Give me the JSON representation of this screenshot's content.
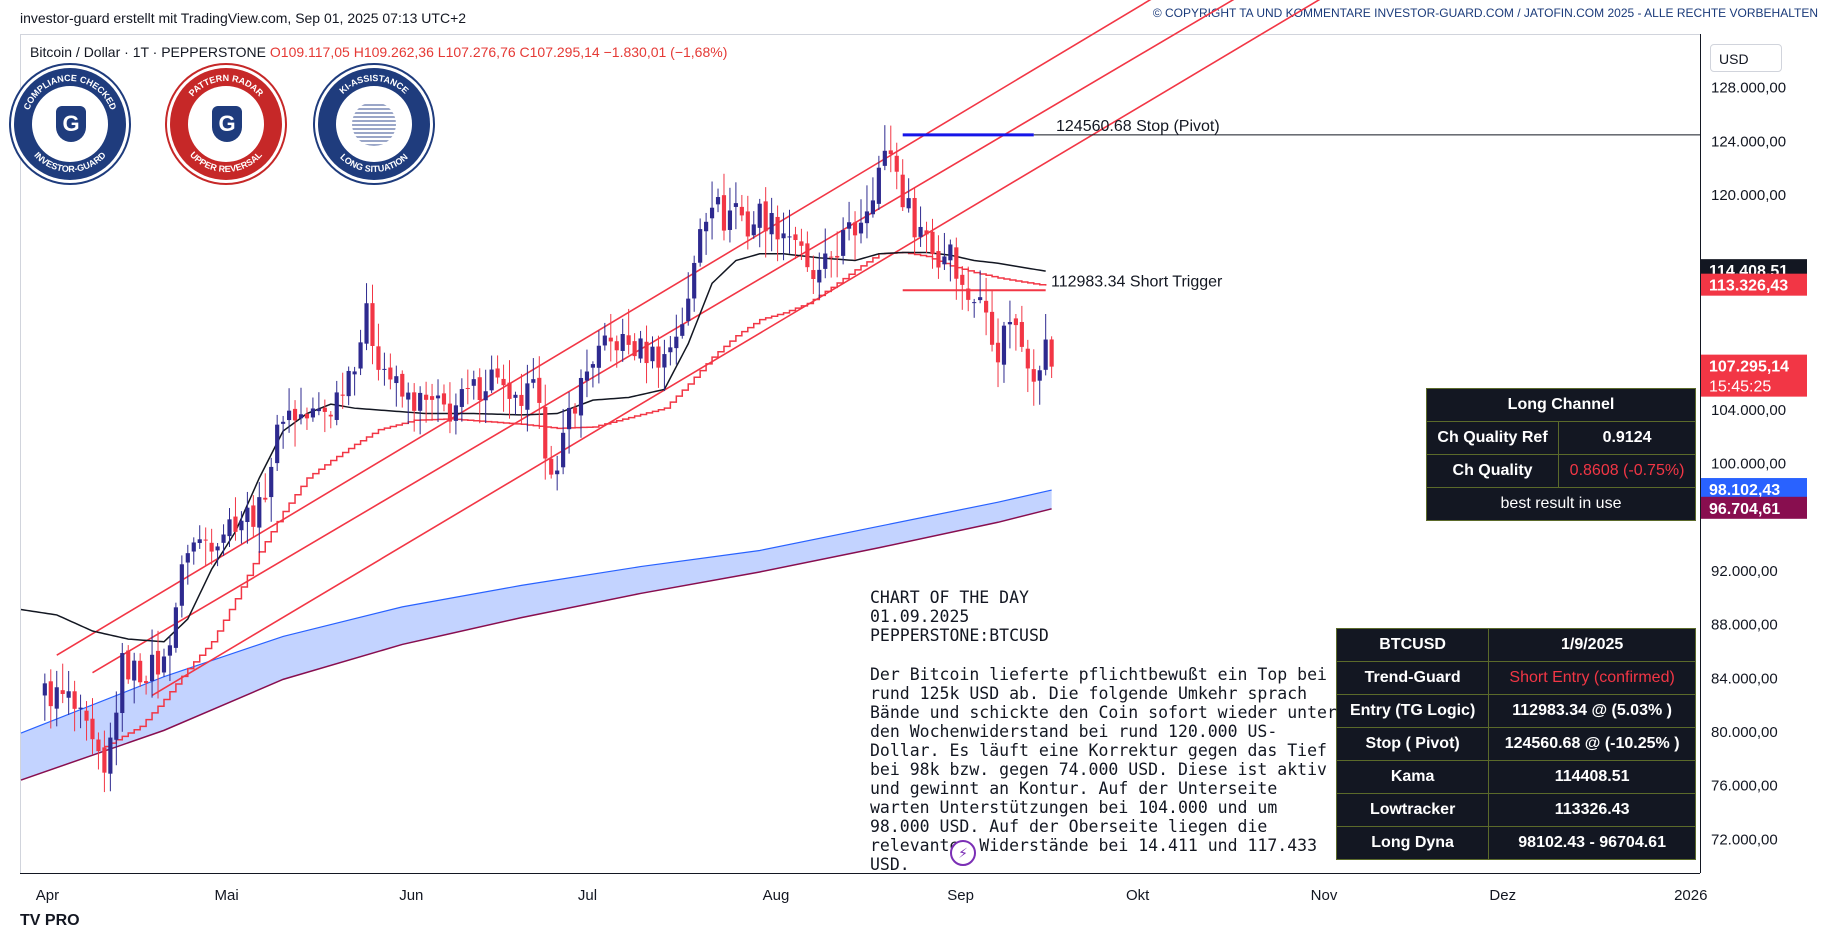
{
  "header": {
    "created_by": "investor-guard erstellt mit TradingView.com, Sep 01, 2025 07:13 UTC+2",
    "copyright": "© COPYRIGHT TA UND KOMMENTARE INVESTOR-GUARD.COM / JATOFIN.COM 2025 - ALLE RECHTE VORBEHALTEN"
  },
  "legend": {
    "symbol": "Bitcoin / Dollar · 1T · PEPPERSTONE",
    "open": "O109.117,05",
    "high": "H109.262,36",
    "low": "L107.276,76",
    "close": "C107.295,14",
    "change": "−1.830,01 (−1,68%)"
  },
  "currency": "USD",
  "badges": [
    {
      "top_text": "COMPLIANCE CHECKED",
      "bottom_text": "INVESTOR-GUARD",
      "ring_color": "#1f3c7d",
      "icon": "shield-g-icon"
    },
    {
      "top_text": "PATTERN RADAR",
      "bottom_text": "UPPER REVERSAL",
      "ring_color": "#c62828",
      "icon": "shield-g-icon"
    },
    {
      "top_text": "KI-ASSISTANCE",
      "bottom_text": "LONG SITUATION",
      "ring_color": "#1f3c7d",
      "icon": "ai-globe-icon"
    }
  ],
  "annotations": {
    "stop_pivot": "124560.68  Stop (Pivot)",
    "short_trigger": "112983.34  Short Trigger"
  },
  "price_badges": [
    {
      "label": "114.408,51",
      "bg": "#131722",
      "value": 114408.51
    },
    {
      "label": "113.326,43",
      "bg": "#f23645",
      "value": 113326.43
    },
    {
      "label": "107.295,14",
      "sub": "15:45:25",
      "bg": "#f23645",
      "value": 107295.14
    },
    {
      "label": "98.102,43",
      "bg": "#2962ff",
      "value": 98102.43
    },
    {
      "label": "96.704,61",
      "bg": "#880e4f",
      "value": 96704.61
    }
  ],
  "long_channel": {
    "title": "Long Channel",
    "rows": [
      {
        "label": "Ch Quality Ref",
        "value": "0.9124"
      },
      {
        "label": "Ch Quality",
        "value": "0.8608 (-0.75%)"
      }
    ],
    "footer": "best result in use"
  },
  "summary_table": {
    "header": [
      "BTCUSD",
      "1/9/2025"
    ],
    "rows": [
      {
        "label": "Trend-Guard",
        "value": "Short Entry (confirmed)"
      },
      {
        "label": "Entry (TG Logic)",
        "value": "112983.34 @ (5.03% )"
      },
      {
        "label": "Stop ( Pivot)",
        "value": "124560.68 @ (-10.25% )"
      },
      {
        "label": "Kama",
        "value": "114408.51"
      },
      {
        "label": "Lowtracker",
        "value": "113326.43"
      },
      {
        "label": "Long Dyna",
        "value": "98102.43 - 96704.61"
      }
    ]
  },
  "commentary": {
    "line1": "CHART OF THE DAY",
    "line2": "01.09.2025",
    "line3": "PEPPERSTONE:BTCUSD",
    "body": "Der Bitcoin lieferte pflichtbewußt ein Top bei rund 125k USD ab. Die folgende Umkehr sprach Bände und schickte den Coin sofort wieder unter den Wochenwiderstand bei rund 120.000 US-Dollar. Es läuft eine Korrektur gegen das Tief bei 98k bzw. gegen 74.000 USD. Diese ist aktiv und gewinnt an Kontur. Auf der Unterseite warten Unterstützungen bei 104.000 und um 98.000 USD. Auf der Oberseite liegen die relevanten Widerstände bei 14.411 und 117.433 USD."
  },
  "tv_logo": "TV PRO",
  "chart_data": {
    "type": "candlestick",
    "y_ticks": [
      72000,
      76000,
      80000,
      84000,
      88000,
      92000,
      100000,
      104000,
      120000,
      124000,
      128000
    ],
    "y_tick_labels": [
      "72.000,00",
      "76.000,00",
      "80.000,00",
      "84.000,00",
      "88.000,00",
      "92.000,00",
      "100.000,00",
      "104.000,00",
      "120.000,00",
      "124.000,00",
      "128.000,00"
    ],
    "ylim": [
      69500,
      132000
    ],
    "x_ticks": [
      "Apr",
      "Mai",
      "Jun",
      "Jul",
      "Aug",
      "Sep",
      "Okt",
      "Nov",
      "Dez",
      "2026"
    ],
    "x_tick_days": [
      1,
      31,
      62,
      92,
      123,
      154,
      184,
      215,
      245,
      276
    ],
    "xlim": [
      -4,
      278
    ],
    "anchors": [
      [
        0,
        83000
      ],
      [
        4,
        82500
      ],
      [
        7,
        80000
      ],
      [
        10,
        76500
      ],
      [
        13,
        85000
      ],
      [
        16,
        84500
      ],
      [
        20,
        85200
      ],
      [
        24,
        94000
      ],
      [
        28,
        94500
      ],
      [
        32,
        96000
      ],
      [
        36,
        96500
      ],
      [
        40,
        104000
      ],
      [
        44,
        103500
      ],
      [
        48,
        104200
      ],
      [
        52,
        108000
      ],
      [
        54,
        111000
      ],
      [
        56,
        108000
      ],
      [
        60,
        105000
      ],
      [
        64,
        104500
      ],
      [
        68,
        104000
      ],
      [
        72,
        105500
      ],
      [
        76,
        107000
      ],
      [
        78,
        104000
      ],
      [
        82,
        105500
      ],
      [
        84,
        101500
      ],
      [
        86,
        99000
      ],
      [
        88,
        103800
      ],
      [
        92,
        108000
      ],
      [
        96,
        109200
      ],
      [
        100,
        108500
      ],
      [
        104,
        108000
      ],
      [
        108,
        111800
      ],
      [
        110,
        118000
      ],
      [
        112,
        120000
      ],
      [
        114,
        118200
      ],
      [
        116,
        119500
      ],
      [
        118,
        117500
      ],
      [
        120,
        118800
      ],
      [
        122,
        118000
      ],
      [
        126,
        117000
      ],
      [
        128,
        114000
      ],
      [
        130,
        113800
      ],
      [
        132,
        115500
      ],
      [
        134,
        116800
      ],
      [
        136,
        117500
      ],
      [
        138,
        119500
      ],
      [
        140,
        122000
      ],
      [
        142,
        123500
      ],
      [
        144,
        120000
      ],
      [
        146,
        118000
      ],
      [
        148,
        117200
      ],
      [
        150,
        115000
      ],
      [
        152,
        116700
      ],
      [
        154,
        113000
      ],
      [
        156,
        112500
      ],
      [
        158,
        111500
      ],
      [
        160,
        108500
      ],
      [
        162,
        111200
      ],
      [
        164,
        109000
      ],
      [
        166,
        107000
      ],
      [
        168,
        108800
      ],
      [
        169,
        107295
      ]
    ],
    "kama": [
      [
        -4,
        89200
      ],
      [
        2,
        88800
      ],
      [
        8,
        87600
      ],
      [
        14,
        87000
      ],
      [
        20,
        86800
      ],
      [
        24,
        88500
      ],
      [
        28,
        92200
      ],
      [
        32,
        95000
      ],
      [
        36,
        99000
      ],
      [
        40,
        102500
      ],
      [
        44,
        103800
      ],
      [
        48,
        104500
      ],
      [
        52,
        104200
      ],
      [
        58,
        104000
      ],
      [
        64,
        103800
      ],
      [
        72,
        103800
      ],
      [
        80,
        103700
      ],
      [
        86,
        103800
      ],
      [
        92,
        104800
      ],
      [
        98,
        105000
      ],
      [
        104,
        105600
      ],
      [
        108,
        109000
      ],
      [
        112,
        113500
      ],
      [
        116,
        115200
      ],
      [
        120,
        115700
      ],
      [
        124,
        115700
      ],
      [
        130,
        115400
      ],
      [
        136,
        115200
      ],
      [
        140,
        115700
      ],
      [
        144,
        115800
      ],
      [
        148,
        115800
      ],
      [
        152,
        115600
      ],
      [
        156,
        115200
      ],
      [
        160,
        115000
      ],
      [
        164,
        114700
      ],
      [
        168,
        114408
      ]
    ],
    "lowtracker": [
      [
        10,
        79000
      ],
      [
        16,
        80500
      ],
      [
        20,
        82500
      ],
      [
        24,
        84800
      ],
      [
        28,
        86800
      ],
      [
        32,
        90000
      ],
      [
        36,
        93500
      ],
      [
        40,
        96500
      ],
      [
        44,
        99000
      ],
      [
        48,
        100300
      ],
      [
        52,
        101500
      ],
      [
        56,
        102600
      ],
      [
        62,
        103300
      ],
      [
        68,
        103400
      ],
      [
        74,
        103200
      ],
      [
        80,
        103000
      ],
      [
        86,
        102700
      ],
      [
        92,
        102800
      ],
      [
        98,
        103500
      ],
      [
        104,
        104200
      ],
      [
        108,
        106000
      ],
      [
        112,
        108000
      ],
      [
        116,
        109600
      ],
      [
        120,
        110800
      ],
      [
        124,
        111300
      ],
      [
        128,
        112000
      ],
      [
        132,
        113200
      ],
      [
        136,
        114500
      ],
      [
        140,
        115700
      ],
      [
        144,
        115800
      ],
      [
        148,
        115500
      ],
      [
        152,
        114800
      ],
      [
        156,
        114300
      ],
      [
        160,
        113900
      ],
      [
        164,
        113600
      ],
      [
        168,
        113326
      ]
    ],
    "dyna_upper": [
      [
        -4,
        80000
      ],
      [
        20,
        84200
      ],
      [
        40,
        87200
      ],
      [
        60,
        89400
      ],
      [
        80,
        91000
      ],
      [
        100,
        92400
      ],
      [
        120,
        93600
      ],
      [
        140,
        95400
      ],
      [
        160,
        97200
      ],
      [
        169,
        98102
      ]
    ],
    "dyna_lower": [
      [
        -4,
        76500
      ],
      [
        20,
        80200
      ],
      [
        40,
        84000
      ],
      [
        60,
        86600
      ],
      [
        80,
        88600
      ],
      [
        100,
        90400
      ],
      [
        120,
        92000
      ],
      [
        140,
        93800
      ],
      [
        160,
        95700
      ],
      [
        169,
        96704
      ]
    ],
    "channel_lines": [
      {
        "from": [
          2,
          85800
        ],
        "to": [
          202,
          139000
        ]
      },
      {
        "from": [
          8,
          84500
        ],
        "to": [
          220,
          140000
        ]
      },
      {
        "from": [
          18,
          82800
        ],
        "to": [
          238,
          141000
        ]
      }
    ],
    "stop_pivot": {
      "price": 124560.68,
      "segment_from": 144,
      "segment_to": 166
    },
    "short_trigger": {
      "price": 112983.34,
      "segment_from": 144,
      "segment_to": 168
    },
    "current_price": 107295.14
  }
}
